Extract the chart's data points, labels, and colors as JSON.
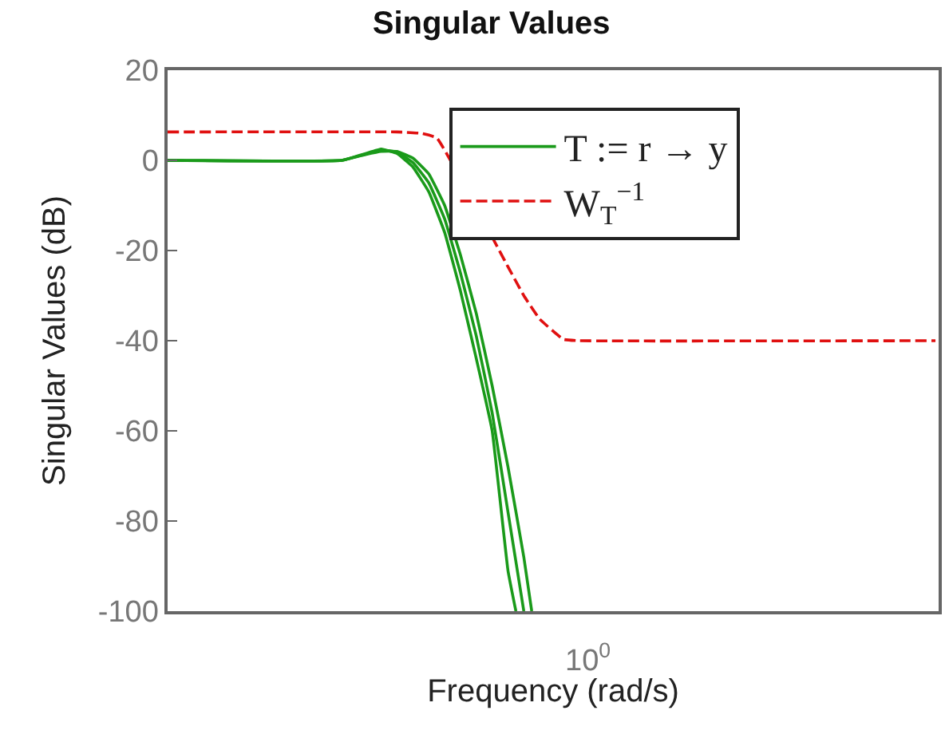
{
  "chart_data": {
    "type": "line",
    "title": "Singular Values",
    "xlabel": "Frequency (rad/s)",
    "ylabel": "Singular Values (dB)",
    "legend": "top right",
    "marker": "none",
    "annotations": [
      "10$^{0}$"
    ],
    "categories": [
      null,
      null,
      null,
      null,
      null,
      null,
      null,
      null,
      null,
      null,
      null,
      null,
      null,
      null,
      null,
      null,
      null,
      null,
      null,
      null,
      null,
      null,
      null,
      null,
      null,
      null,
      null,
      null,
      null,
      null,
      null,
      null,
      null,
      null,
      null,
      null,
      null,
      null,
      null,
      null,
      null,
      null,
      null,
      null,
      null,
      null,
      null,
      null,
      null,
      null,
      null,
      null,
      null,
      null,
      null,
      null,
      null,
      null,
      null,
      null,
      null,
      null,
      null,
      null,
      null,
      null,
      null,
      null,
      null,
      null,
      null,
      null,
      null,
      null,
      null,
      null,
      null,
      null,
      null,
      null,
      null,
      null,
      null,
      null,
      null,
      null,
      null,
      null,
      null,
      null,
      null,
      null,
      null,
      null,
      null,
      null,
      null,
      null
    ],
    "ylim": [
      -100,
      20
    ],
    "yticks": [
      20,
      0,
      -20,
      -40,
      -60,
      -80,
      -100
    ],
    "series": [
      {
        "name": "T := r → y",
        "color": "#1a9a1a",
        "line_style": "solid",
        "values": [
          0,
          null,
          null,
          null,
          null,
          null,
          null,
          null,
          null,
          null,
          null,
          null,
          null,
          null,
          null,
          null,
          null,
          null,
          null,
          null,
          null,
          null,
          0,
          null,
          null,
          1.5,
          null,
          2.5,
          null,
          1.5,
          null,
          -1.5,
          null,
          -7,
          null,
          -16,
          null,
          -29,
          null,
          -44,
          null,
          -60,
          null,
          -91,
          -100,
          null,
          null,
          null,
          null,
          null,
          null,
          null,
          null,
          null,
          null,
          null,
          null,
          null,
          null,
          null,
          null,
          null,
          null,
          null,
          null,
          null,
          null,
          null,
          null,
          null,
          null,
          null,
          null,
          null,
          null,
          null,
          null,
          null,
          null,
          null,
          null,
          null,
          null,
          null,
          null,
          null,
          null,
          null,
          null,
          null,
          null,
          null,
          null,
          null,
          null,
          null,
          null,
          null
        ]
      },
      {
        "color": "#1a9a1a",
        "line_style": "solid",
        "values": [
          0,
          null,
          null,
          null,
          null,
          null,
          null,
          null,
          null,
          null,
          null,
          null,
          null,
          null,
          null,
          null,
          null,
          null,
          null,
          null,
          null,
          null,
          0,
          null,
          null,
          1.4,
          null,
          2.3,
          null,
          1.8,
          null,
          -0.5,
          null,
          -5,
          null,
          -13,
          null,
          -25,
          null,
          -39,
          null,
          -56,
          null,
          -78,
          null,
          -100,
          null,
          null,
          null,
          null,
          null,
          null,
          null,
          null,
          null,
          null,
          null,
          null,
          null,
          null,
          null,
          null,
          null,
          null,
          null,
          null,
          null,
          null,
          null,
          null,
          null,
          null,
          null,
          null,
          null,
          null,
          null,
          null,
          null,
          null,
          null,
          null,
          null,
          null,
          null,
          null,
          null,
          null,
          null,
          null,
          null,
          null,
          null,
          null,
          null,
          null,
          null,
          null
        ]
      },
      {
        "color": "#1a9a1a",
        "line_style": "solid",
        "values": [
          0,
          null,
          null,
          null,
          null,
          null,
          null,
          null,
          null,
          null,
          null,
          null,
          null,
          null,
          null,
          null,
          null,
          null,
          null,
          null,
          null,
          null,
          0,
          null,
          null,
          1.3,
          null,
          2,
          null,
          2,
          null,
          0.5,
          null,
          -3,
          null,
          -10,
          null,
          -21,
          null,
          -34,
          null,
          -50,
          null,
          -68,
          null,
          -88,
          -100,
          null,
          null,
          null,
          null,
          null,
          null,
          null,
          null,
          null,
          null,
          null,
          null,
          null,
          null,
          null,
          null,
          null,
          null,
          null,
          null,
          null,
          null,
          null,
          null,
          null,
          null,
          null,
          null,
          null,
          null,
          null,
          null,
          null,
          null,
          null,
          null,
          null,
          null,
          null,
          null,
          null,
          null,
          null,
          null,
          null,
          null,
          null,
          null,
          null,
          null,
          null
        ]
      },
      {
        "name": "W$_{T}$$^{−1}$",
        "color": "#e01010",
        "line_style": "dashed",
        "values": [
          6.3,
          null,
          null,
          null,
          null,
          null,
          null,
          null,
          null,
          null,
          null,
          null,
          null,
          null,
          null,
          null,
          null,
          null,
          null,
          null,
          null,
          null,
          null,
          null,
          null,
          null,
          null,
          null,
          null,
          6.3,
          null,
          null,
          6,
          null,
          5,
          null,
          null,
          null,
          null,
          null,
          null,
          null,
          null,
          -23.6,
          null,
          -30,
          null,
          -35.2,
          null,
          null,
          -39.7,
          null,
          -40,
          null,
          null,
          null,
          null,
          null,
          null,
          null,
          null,
          null,
          null,
          null,
          null,
          null,
          null,
          null,
          null,
          null,
          null,
          null,
          null,
          null,
          null,
          null,
          null,
          null,
          null,
          null,
          null,
          null,
          null,
          null,
          null,
          null,
          null,
          null,
          null,
          null,
          null,
          null,
          null,
          null,
          null,
          null,
          null,
          -40
        ]
      }
    ]
  }
}
